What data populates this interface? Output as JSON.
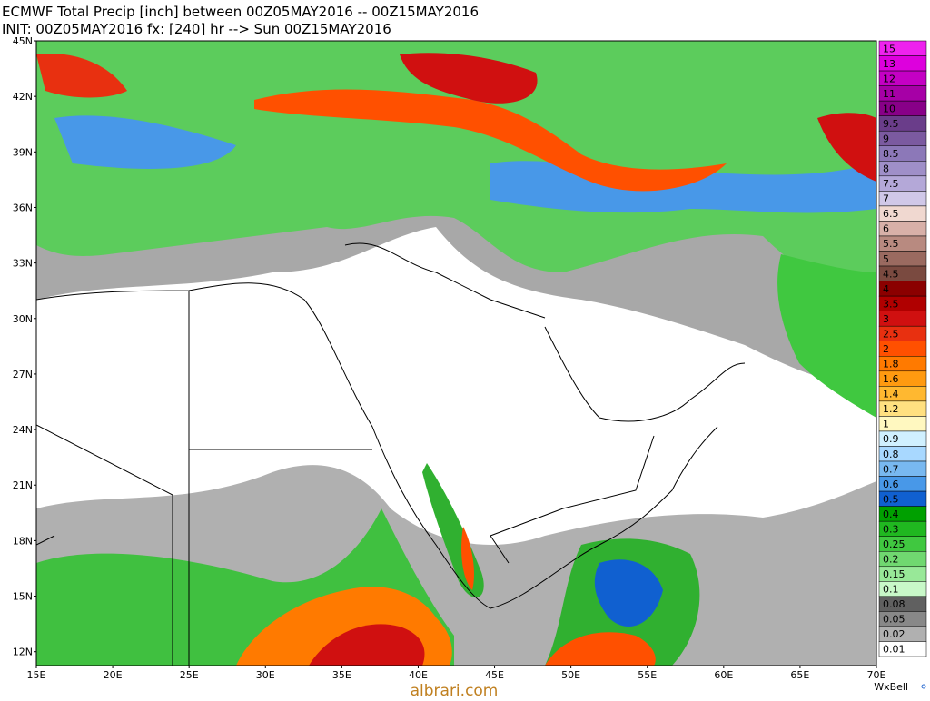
{
  "header": {
    "line1": "ECMWF Total Precip [inch] between 00Z05MAY2016 -- 00Z15MAY2016",
    "line2": "INIT: 00Z05MAY2016 fx: [240] hr --> Sun 00Z15MAY2016"
  },
  "map": {
    "lat_labels": [
      "45N",
      "42N",
      "39N",
      "36N",
      "33N",
      "30N",
      "27N",
      "24N",
      "21N",
      "18N",
      "15N",
      "12N"
    ],
    "lon_labels": [
      "15E",
      "20E",
      "25E",
      "30E",
      "35E",
      "40E",
      "45E",
      "50E",
      "55E",
      "60E",
      "65E",
      "70E"
    ]
  },
  "legend": {
    "items": [
      {
        "value": 15,
        "color": "#ee22ee"
      },
      {
        "value": 13,
        "color": "#dd00dd"
      },
      {
        "value": 12,
        "color": "#c400c4"
      },
      {
        "value": 11,
        "color": "#a600a6"
      },
      {
        "value": 10,
        "color": "#880088"
      },
      {
        "value": 9.5,
        "color": "#6a3d8a"
      },
      {
        "value": 9,
        "color": "#7b5aa0"
      },
      {
        "value": 8.5,
        "color": "#8c78b8"
      },
      {
        "value": 8,
        "color": "#9f8fc8"
      },
      {
        "value": 7.5,
        "color": "#b4a8d8"
      },
      {
        "value": 7,
        "color": "#d0c8e8"
      },
      {
        "value": 6.5,
        "color": "#f0d8d0"
      },
      {
        "value": 6,
        "color": "#d8b0a8"
      },
      {
        "value": 5.5,
        "color": "#b88a80"
      },
      {
        "value": 5,
        "color": "#9a6a60"
      },
      {
        "value": 4.5,
        "color": "#7a4a40"
      },
      {
        "value": 4,
        "color": "#8b0000"
      },
      {
        "value": 3.5,
        "color": "#b00000"
      },
      {
        "value": 3,
        "color": "#d01010"
      },
      {
        "value": 2.5,
        "color": "#e83010"
      },
      {
        "value": 2,
        "color": "#ff5000"
      },
      {
        "value": 1.8,
        "color": "#ff7a00"
      },
      {
        "value": 1.6,
        "color": "#ff9a10"
      },
      {
        "value": 1.4,
        "color": "#ffb830"
      },
      {
        "value": 1.2,
        "color": "#ffe080"
      },
      {
        "value": 1,
        "color": "#fff8c0"
      },
      {
        "value": 0.9,
        "color": "#d0f0ff"
      },
      {
        "value": 0.8,
        "color": "#a8d8ff"
      },
      {
        "value": 0.7,
        "color": "#78b8f0"
      },
      {
        "value": 0.6,
        "color": "#4898e8"
      },
      {
        "value": 0.5,
        "color": "#1060d0"
      },
      {
        "value": 0.4,
        "color": "#00a000"
      },
      {
        "value": 0.3,
        "color": "#20b820"
      },
      {
        "value": 0.25,
        "color": "#40c840"
      },
      {
        "value": 0.2,
        "color": "#70d870"
      },
      {
        "value": 0.15,
        "color": "#98e898"
      },
      {
        "value": 0.1,
        "color": "#c8f8c8"
      },
      {
        "value": 0.08,
        "color": "#606060"
      },
      {
        "value": 0.05,
        "color": "#888888"
      },
      {
        "value": 0.02,
        "color": "#b0b0b0"
      },
      {
        "value": 0.01,
        "color": "#ffffff"
      }
    ]
  },
  "credit": "WxBell",
  "watermark": "albrari.com"
}
